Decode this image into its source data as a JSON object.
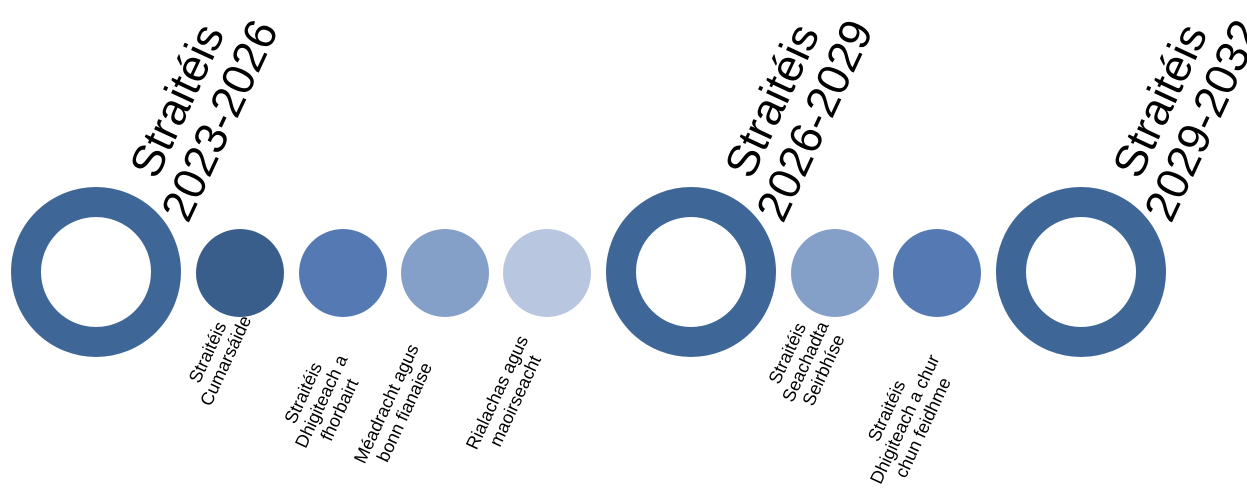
{
  "colors": {
    "ring": "#3e6697",
    "dot_dark": "#395e8c",
    "dot_medium": "#5479b3",
    "dot_light": "#849fc8",
    "dot_pale": "#b8c6e0",
    "text": "#000000"
  },
  "periods": [
    {
      "name": "Straitéis",
      "years": "2023-2026"
    },
    {
      "name": "Straitéis",
      "years": "2026-2029"
    },
    {
      "name": "Straitéis",
      "years": "2029-2032"
    }
  ],
  "strategies": [
    {
      "label": "Straitéis\nCumarsáide",
      "color": "#395e8c"
    },
    {
      "label": "Straitéis\nDhigiteach a\nfhorbairt",
      "color": "#5479b3"
    },
    {
      "label": "Méadracht agus\nbonn fianaise",
      "color": "#849fc8"
    },
    {
      "label": "Rialachas agus\nmaoirseacht",
      "color": "#b8c6e0"
    },
    {
      "label": "Straitéis\nSeachadta\nSeirbhíse",
      "color": "#849fc8"
    },
    {
      "label": "Straitéis\nDhigiteach a chur\nchun feidhme",
      "color": "#5479b3"
    }
  ]
}
